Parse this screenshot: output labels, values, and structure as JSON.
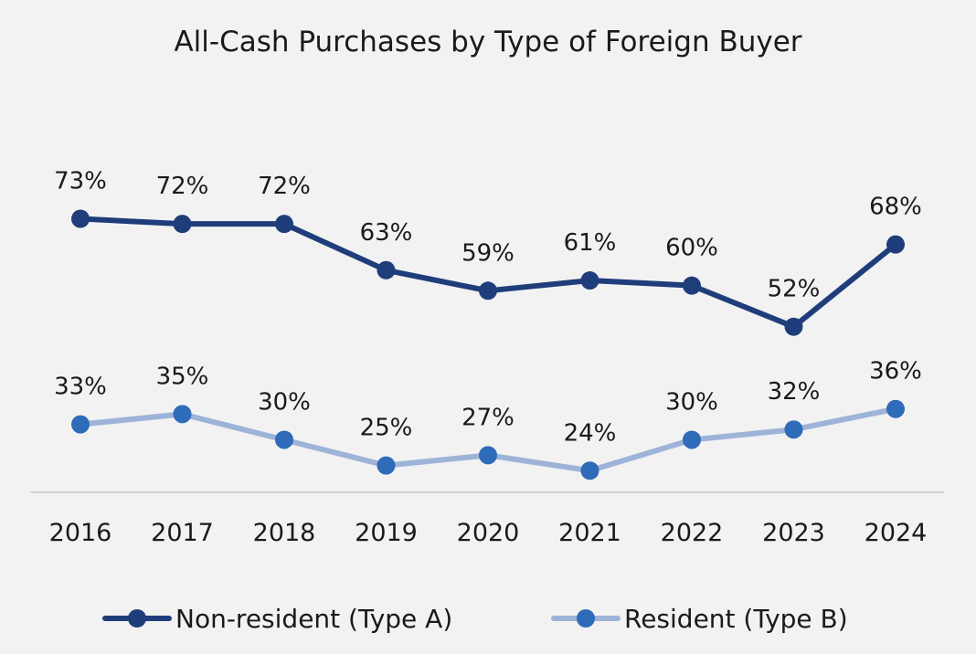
{
  "chart_data": {
    "type": "line",
    "title": "All-Cash Purchases by Type of Foreign Buyer",
    "categories": [
      "2016",
      "2017",
      "2018",
      "2019",
      "2020",
      "2021",
      "2022",
      "2023",
      "2024"
    ],
    "series": [
      {
        "name": "Non-resident (Type A)",
        "values": [
          73,
          72,
          72,
          63,
          59,
          61,
          60,
          52,
          68
        ],
        "labels": [
          "73%",
          "72%",
          "72%",
          "63%",
          "59%",
          "61%",
          "60%",
          "52%",
          "68%"
        ],
        "line_color": "#1f3d7a",
        "marker_color": "#1f3d7a"
      },
      {
        "name": "Resident (Type B)",
        "values": [
          33,
          35,
          30,
          25,
          27,
          24,
          30,
          32,
          36
        ],
        "labels": [
          "33%",
          "35%",
          "30%",
          "25%",
          "27%",
          "24%",
          "30%",
          "32%",
          "36%"
        ],
        "line_color": "#9eb3d8",
        "marker_color": "#2e6bb8"
      }
    ],
    "xlabel": "",
    "ylabel": "",
    "grid": false,
    "legend": "bottom"
  }
}
